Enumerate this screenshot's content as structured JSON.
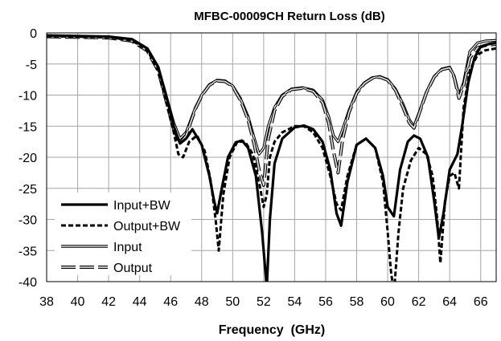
{
  "chart_data": {
    "type": "line",
    "title": "MFBC-00009CH Return Loss (dB)",
    "xlabel": "Frequency  (GHz)",
    "ylabel": "",
    "xlim": [
      38,
      67
    ],
    "ylim": [
      -40,
      0
    ],
    "xticks": [
      38,
      40,
      42,
      44,
      46,
      48,
      50,
      52,
      54,
      56,
      58,
      60,
      62,
      64,
      66
    ],
    "yticks": [
      0,
      -5,
      -10,
      -15,
      -20,
      -25,
      -30,
      -35,
      -40
    ],
    "xtick_labels": [
      "38",
      "40",
      "42",
      "44",
      "46",
      "48",
      "50",
      "52",
      "54",
      "56",
      "58",
      "60",
      "62",
      "64",
      "66"
    ],
    "ytick_labels": [
      "0",
      "-5",
      "-10",
      "-15",
      "-20",
      "-25",
      "-30",
      "-35",
      "-40"
    ],
    "grid": true,
    "legend_position": "bottom-left",
    "series": [
      {
        "name": "Input+BW",
        "style": "solid-thick",
        "color": "#000000",
        "x": [
          38,
          40,
          42,
          43.5,
          44.5,
          45.2,
          45.7,
          46.2,
          46.6,
          47.0,
          47.4,
          48.0,
          48.5,
          48.8,
          49.0,
          49.3,
          49.7,
          50.2,
          50.6,
          51.0,
          51.5,
          51.9,
          52.1,
          52.2,
          52.4,
          52.7,
          53.2,
          54.0,
          54.6,
          55.2,
          55.8,
          56.3,
          56.7,
          57.0,
          57.4,
          58.0,
          58.6,
          59.2,
          59.7,
          60.0,
          60.4,
          60.8,
          61.3,
          61.7,
          62.1,
          62.6,
          63.0,
          63.3,
          63.6,
          64.0,
          64.5,
          64.8,
          65.2,
          65.6,
          66.0,
          66.5,
          67.0
        ],
        "y": [
          -0.4,
          -0.5,
          -0.6,
          -1.0,
          -2.5,
          -5.5,
          -10.0,
          -15.0,
          -17.8,
          -17.0,
          -15.5,
          -18.0,
          -23.0,
          -27.0,
          -29.0,
          -25.0,
          -20.0,
          -17.6,
          -17.3,
          -18.5,
          -23.0,
          -32.0,
          -38.0,
          -41.0,
          -30.0,
          -21.0,
          -17.0,
          -15.2,
          -14.9,
          -15.5,
          -17.5,
          -22.0,
          -29.0,
          -31.0,
          -24.0,
          -18.0,
          -17.0,
          -18.5,
          -23.0,
          -28.0,
          -29.5,
          -22.0,
          -17.5,
          -16.5,
          -17.0,
          -20.0,
          -27.0,
          -33.0,
          -29.0,
          -22.0,
          -19.5,
          -15.0,
          -8.0,
          -4.0,
          -2.2,
          -1.8,
          -1.6
        ]
      },
      {
        "name": "Output+BW",
        "style": "dashed-thick",
        "color": "#000000",
        "x": [
          38,
          40,
          42,
          43.5,
          44.5,
          45.2,
          45.7,
          46.2,
          46.5,
          46.8,
          47.2,
          47.7,
          48.2,
          48.6,
          48.9,
          49.1,
          49.4,
          49.8,
          50.3,
          50.8,
          51.3,
          51.7,
          52.0,
          52.2,
          52.4,
          52.7,
          53.2,
          54.0,
          54.6,
          55.2,
          55.8,
          56.3,
          56.7,
          57.0,
          57.4,
          58.0,
          58.6,
          59.2,
          59.7,
          60.0,
          60.2,
          60.4,
          60.7,
          61.0,
          61.5,
          62.0,
          62.5,
          62.9,
          63.2,
          63.4,
          63.7,
          64.0,
          64.3,
          64.6,
          64.9,
          65.3,
          65.8,
          66.3,
          67.0
        ],
        "y": [
          -0.5,
          -0.6,
          -0.7,
          -1.2,
          -2.8,
          -6.0,
          -11.0,
          -16.0,
          -19.5,
          -20.0,
          -17.5,
          -16.5,
          -19.0,
          -24.0,
          -30.0,
          -35.0,
          -26.0,
          -20.0,
          -17.5,
          -17.5,
          -19.5,
          -24.0,
          -28.0,
          -26.0,
          -20.0,
          -17.5,
          -16.0,
          -15.0,
          -15.0,
          -16.0,
          -18.5,
          -23.0,
          -27.5,
          -28.5,
          -23.0,
          -18.0,
          -17.0,
          -18.5,
          -24.0,
          -32.0,
          -38.0,
          -42.0,
          -32.0,
          -25.0,
          -20.5,
          -18.5,
          -19.5,
          -23.0,
          -30.0,
          -37.0,
          -27.0,
          -23.0,
          -22.5,
          -25.0,
          -12.0,
          -6.0,
          -3.5,
          -2.8,
          -2.5
        ]
      },
      {
        "name": "Input",
        "style": "double-thin",
        "color": "#000000",
        "x": [
          38,
          40,
          42,
          43.5,
          44.5,
          45.2,
          45.7,
          46.2,
          46.6,
          47.0,
          47.3,
          47.6,
          48.0,
          48.5,
          49.0,
          49.5,
          50.0,
          50.5,
          51.0,
          51.4,
          51.7,
          52.0,
          52.3,
          52.7,
          53.2,
          53.8,
          54.5,
          55.2,
          55.8,
          56.2,
          56.5,
          56.8,
          57.1,
          57.5,
          58.0,
          58.5,
          59.0,
          59.5,
          60.0,
          60.5,
          61.0,
          61.4,
          61.7,
          62.0,
          62.5,
          63.0,
          63.5,
          64.0,
          64.3,
          64.6,
          64.9,
          65.3,
          65.8,
          66.3,
          67.0
        ],
        "y": [
          -0.5,
          -0.6,
          -0.7,
          -1.1,
          -2.6,
          -5.6,
          -10.0,
          -14.5,
          -17.0,
          -16.0,
          -14.0,
          -12.0,
          -10.0,
          -8.3,
          -7.6,
          -7.7,
          -8.5,
          -10.5,
          -13.5,
          -17.0,
          -19.5,
          -18.5,
          -15.0,
          -12.0,
          -10.0,
          -9.0,
          -8.8,
          -9.2,
          -10.8,
          -13.5,
          -16.5,
          -17.5,
          -15.5,
          -12.5,
          -9.5,
          -8.0,
          -7.2,
          -7.0,
          -7.5,
          -9.0,
          -11.5,
          -14.0,
          -15.0,
          -13.0,
          -9.5,
          -7.0,
          -5.8,
          -5.5,
          -7.0,
          -10.0,
          -8.0,
          -3.0,
          -1.6,
          -1.3,
          -1.2
        ]
      },
      {
        "name": "Output",
        "style": "double-dashed",
        "color": "#000000",
        "x": [
          38,
          40,
          42,
          43.5,
          44.5,
          45.2,
          45.7,
          46.2,
          46.6,
          47.0,
          47.3,
          47.6,
          48.0,
          48.5,
          49.0,
          49.5,
          50.0,
          50.5,
          51.0,
          51.4,
          51.7,
          52.0,
          52.3,
          52.7,
          53.2,
          53.8,
          54.5,
          55.2,
          55.8,
          56.2,
          56.5,
          56.8,
          57.1,
          57.5,
          58.0,
          58.5,
          59.0,
          59.5,
          60.0,
          60.5,
          61.0,
          61.4,
          61.7,
          62.0,
          62.5,
          63.0,
          63.5,
          64.0,
          64.3,
          64.6,
          64.9,
          65.3,
          65.8,
          66.3,
          67.0
        ],
        "y": [
          -0.6,
          -0.7,
          -0.8,
          -1.3,
          -2.9,
          -6.1,
          -10.8,
          -15.5,
          -17.8,
          -16.5,
          -14.3,
          -12.2,
          -10.1,
          -8.4,
          -7.7,
          -7.8,
          -8.6,
          -10.8,
          -14.0,
          -18.0,
          -22.0,
          -24.5,
          -17.0,
          -12.5,
          -10.2,
          -9.1,
          -8.9,
          -9.4,
          -11.2,
          -14.5,
          -19.0,
          -22.5,
          -17.0,
          -12.8,
          -9.7,
          -8.1,
          -7.3,
          -7.1,
          -7.6,
          -9.2,
          -12.0,
          -14.5,
          -15.3,
          -13.2,
          -9.6,
          -7.1,
          -5.9,
          -5.6,
          -7.2,
          -10.5,
          -8.5,
          -4.0,
          -2.4,
          -2.0,
          -1.8
        ]
      }
    ]
  }
}
